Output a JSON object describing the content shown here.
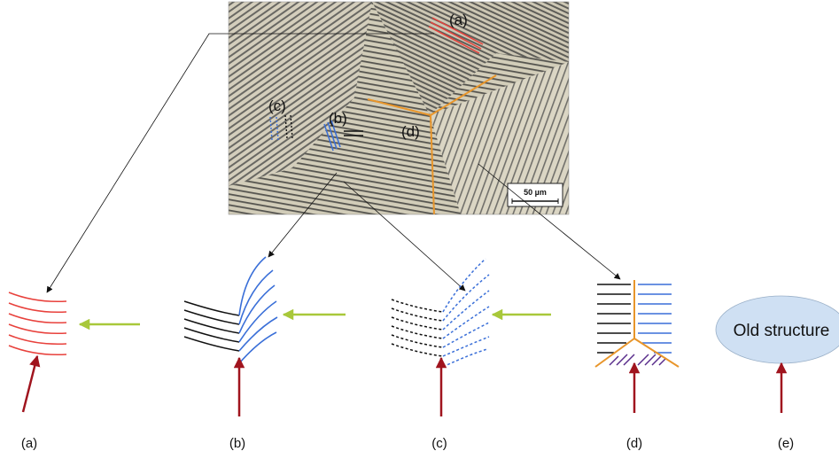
{
  "micrograph": {
    "labels": {
      "a": "(a)",
      "b": "(b)",
      "c": "(c)",
      "d": "(d)"
    },
    "scale_bar": "50 µm"
  },
  "schematics": {
    "old_structure_text": "Old structure",
    "captions": [
      "(a)",
      "(b)",
      "(c)",
      "(d)",
      "(e)"
    ]
  },
  "colors": {
    "red_lines": "#e8413c",
    "blue_lines": "#3a6fd8",
    "black_lines": "#111111",
    "orange_boundary": "#e8952a",
    "purple_hatch": "#5a2d8c",
    "green_arrow": "#a8c83a",
    "dark_red_arrow": "#a0141e",
    "ellipse_fill": "#cfe0f3"
  }
}
